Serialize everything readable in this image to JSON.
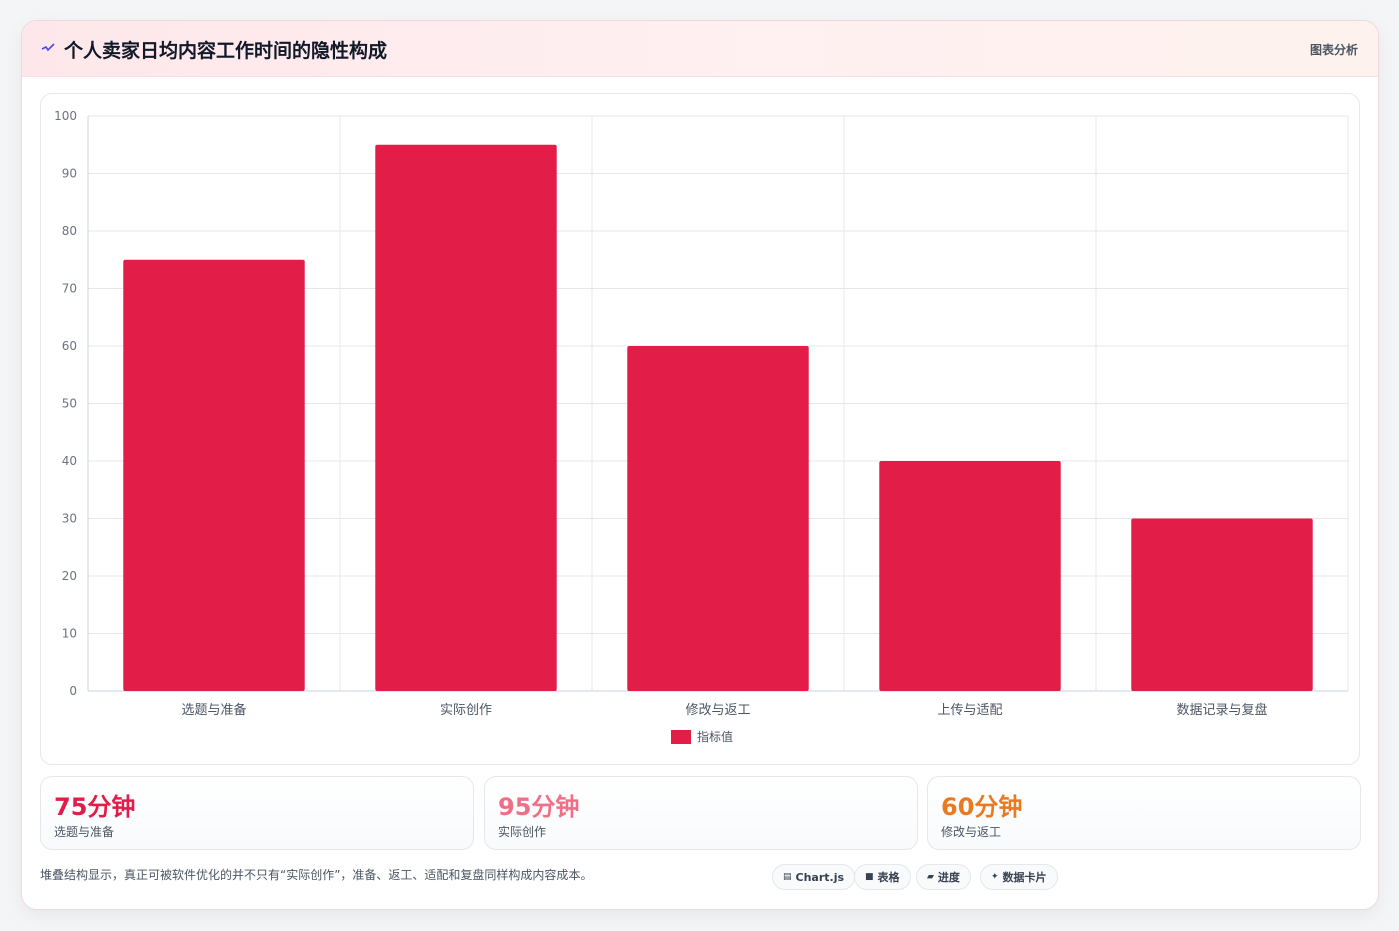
{
  "header": {
    "title": "个人卖家日均内容工作时间的隐性构成",
    "tag": "图表分析"
  },
  "chart_data": {
    "type": "bar",
    "categories": [
      "选题与准备",
      "实际创作",
      "修改与返工",
      "上传与适配",
      "数据记录与复盘"
    ],
    "series": [
      {
        "name": "指标值",
        "values": [
          75,
          95,
          60,
          40,
          30
        ],
        "color": "#e11d48"
      }
    ],
    "ylim": [
      0,
      100
    ],
    "yticks": [
      "0",
      "10",
      "20",
      "30",
      "40",
      "50",
      "60",
      "70",
      "80",
      "90",
      "100"
    ],
    "grid": true,
    "legend_position": "bottom"
  },
  "stats": [
    {
      "value": "75分钟",
      "label": "选题与准备",
      "color": "#e11d48"
    },
    {
      "value": "95分钟",
      "label": "实际创作",
      "color": "#f06f86"
    },
    {
      "value": "60分钟",
      "label": "修改与返工",
      "color": "#ea7a20"
    }
  ],
  "footer": {
    "note": "堆叠结构显示，真正可被软件优化的并不只有“实际创作”，准备、返工、适配和复盘同样构成内容成本。"
  },
  "chips": [
    {
      "icon": "▤",
      "label": "Chart.js",
      "icon_name": "chart-icon"
    },
    {
      "icon": "■",
      "label": "表格",
      "icon_name": "table-icon"
    },
    {
      "icon": "▰",
      "label": "进度",
      "icon_name": "progress-icon"
    },
    {
      "icon": "✦",
      "label": "数据卡片",
      "icon_name": "sparkle-icon"
    }
  ]
}
